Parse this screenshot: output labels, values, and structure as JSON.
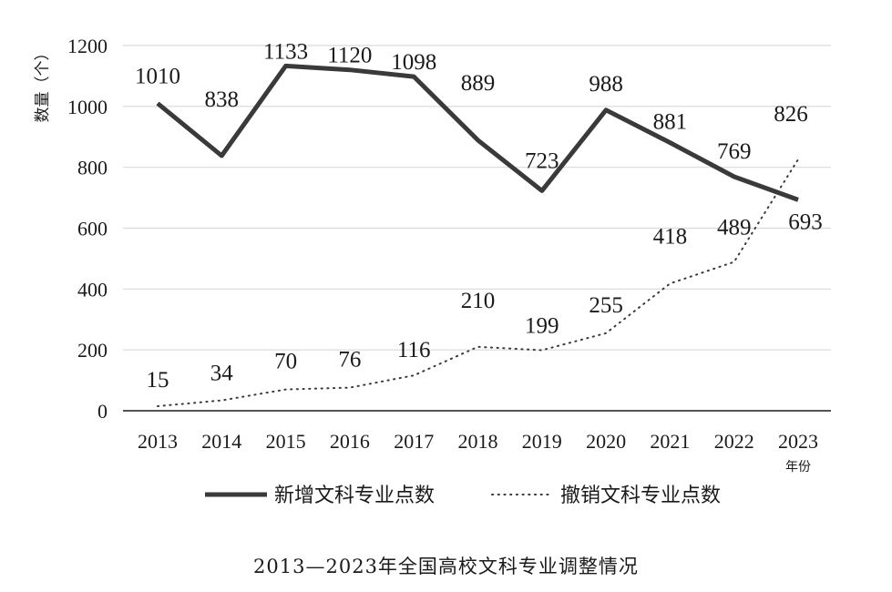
{
  "chart_data": {
    "type": "line",
    "categories": [
      "2013",
      "2014",
      "2015",
      "2016",
      "2017",
      "2018",
      "2019",
      "2020",
      "2021",
      "2022",
      "2023"
    ],
    "series": [
      {
        "name": "新增文科专业点数",
        "style": "solid",
        "color": "#3a3a3a",
        "values": [
          1010,
          838,
          1133,
          1120,
          1098,
          889,
          723,
          988,
          881,
          769,
          693
        ]
      },
      {
        "name": "撤销文科专业点数",
        "style": "dotted",
        "color": "#3a3a3a",
        "values": [
          15,
          34,
          70,
          76,
          116,
          210,
          199,
          255,
          418,
          489,
          826
        ]
      }
    ],
    "ylabel": "数量（个）",
    "xlabel": "年份",
    "ylim": [
      0,
      1200
    ],
    "yticks": [
      "0",
      "200",
      "400",
      "600",
      "800",
      "1000",
      "1200"
    ],
    "grid": true,
    "legend": "bottom"
  },
  "caption": "2013—2023年全国高校文科专业调整情况"
}
